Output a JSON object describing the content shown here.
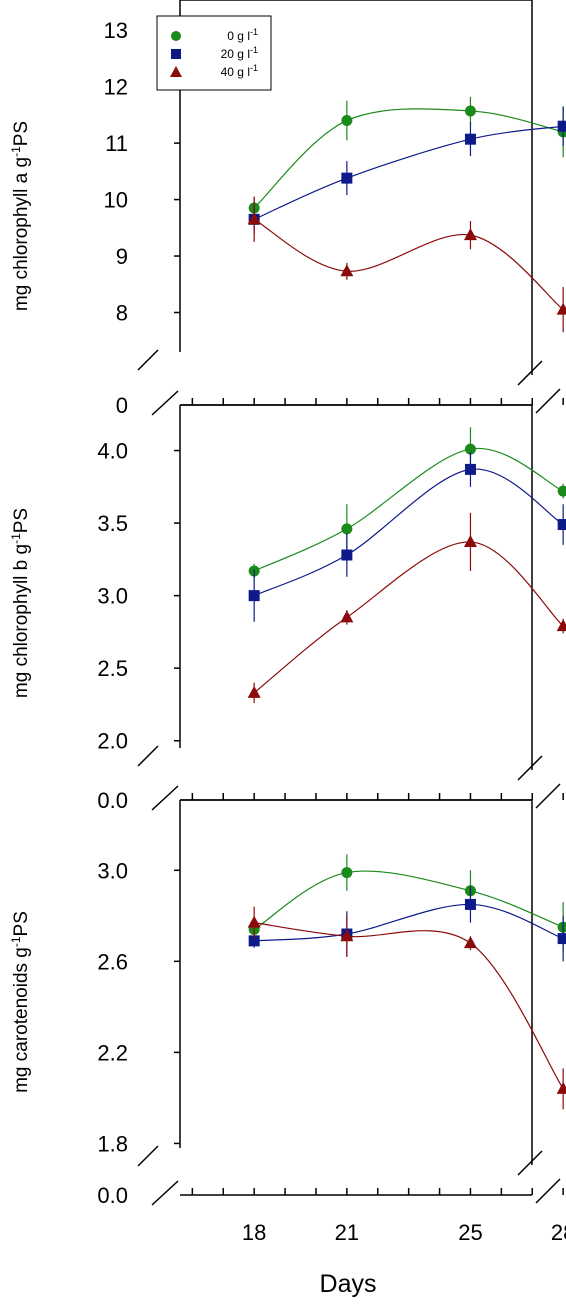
{
  "xlabel": "Days",
  "legend": [
    {
      "label": "0 g l",
      "sup": "-1",
      "color": "#1a8a1a",
      "marker": "circle"
    },
    {
      "label": "20 g l",
      "sup": "-1",
      "color": "#0d1a8a",
      "marker": "square"
    },
    {
      "label": "40 g l",
      "sup": "-1",
      "color": "#8b0a0a",
      "marker": "triangle"
    }
  ],
  "chart_data": [
    {
      "type": "line",
      "ylabel_main": "mg chlorophyll a g",
      "ylabel_sup": "-1",
      "ylabel_tail": "PS",
      "x": [
        18,
        21,
        25,
        28
      ],
      "x_ticks": [
        "18",
        "21",
        "25",
        "28"
      ],
      "ylim": [
        7.3,
        13.5
      ],
      "yticks": [
        8,
        9,
        10,
        11,
        12,
        13
      ],
      "ytick_labels": [
        "8",
        "9",
        "10",
        "11",
        "12",
        "13"
      ],
      "axis_break": true,
      "break_label": "0",
      "series": [
        {
          "name": "0 g l-1",
          "values": [
            9.85,
            11.4,
            11.57,
            11.2
          ],
          "errors": [
            0.2,
            0.35,
            0.25,
            0.45
          ]
        },
        {
          "name": "20 g l-1",
          "values": [
            9.65,
            10.38,
            11.07,
            11.3
          ],
          "errors": [
            0.25,
            0.3,
            0.3,
            0.35
          ]
        },
        {
          "name": "40 g l-1",
          "values": [
            9.65,
            8.73,
            9.37,
            8.05
          ],
          "errors": [
            0.4,
            0.15,
            0.25,
            0.4
          ]
        }
      ]
    },
    {
      "type": "line",
      "ylabel_main": "mg chlorophyll b g",
      "ylabel_sup": "-1",
      "ylabel_tail": "PS",
      "x": [
        18,
        21,
        25,
        28
      ],
      "x_ticks": [
        "18",
        "21",
        "25",
        "28"
      ],
      "ylim": [
        1.95,
        4.3
      ],
      "yticks": [
        2.0,
        2.5,
        3.0,
        3.5,
        4.0
      ],
      "ytick_labels": [
        "2.0",
        "2.5",
        "3.0",
        "3.5",
        "4.0"
      ],
      "axis_break": true,
      "break_label": "0.0",
      "series": [
        {
          "name": "0 g l-1",
          "values": [
            3.17,
            3.46,
            4.01,
            3.72
          ],
          "errors": [
            0.05,
            0.17,
            0.15,
            0.05
          ]
        },
        {
          "name": "20 g l-1",
          "values": [
            3.0,
            3.28,
            3.87,
            3.49
          ],
          "errors": [
            0.18,
            0.15,
            0.12,
            0.14
          ]
        },
        {
          "name": "40 g l-1",
          "values": [
            2.33,
            2.85,
            3.37,
            2.79
          ],
          "errors": [
            0.07,
            0.05,
            0.2,
            0.05
          ]
        }
      ]
    },
    {
      "type": "line",
      "ylabel_main": "mg carotenoids g",
      "ylabel_sup": "-1",
      "ylabel_tail": "PS",
      "x": [
        18,
        21,
        25,
        28
      ],
      "x_ticks": [
        "18",
        "21",
        "25",
        "28"
      ],
      "ylim": [
        1.78,
        3.3
      ],
      "yticks": [
        1.8,
        2.2,
        2.6,
        3.0
      ],
      "ytick_labels": [
        "1.8",
        "2.2",
        "2.6",
        "3.0"
      ],
      "axis_break": true,
      "break_label": "0.0",
      "series": [
        {
          "name": "0 g l-1",
          "values": [
            2.74,
            2.99,
            2.91,
            2.75
          ],
          "errors": [
            0.05,
            0.08,
            0.09,
            0.11
          ]
        },
        {
          "name": "20 g l-1",
          "values": [
            2.69,
            2.72,
            2.85,
            2.7
          ],
          "errors": [
            0.03,
            0.1,
            0.08,
            0.1
          ]
        },
        {
          "name": "40 g l-1",
          "values": [
            2.77,
            2.71,
            2.68,
            2.04
          ],
          "errors": [
            0.07,
            0.09,
            0.03,
            0.09
          ]
        }
      ]
    }
  ]
}
